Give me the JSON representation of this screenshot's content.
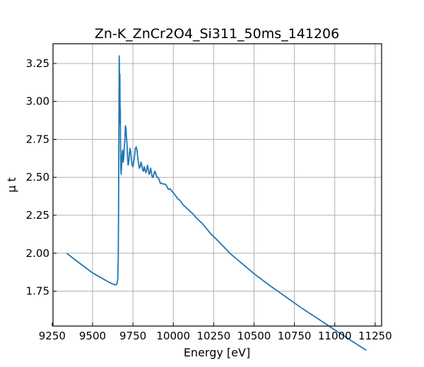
{
  "chart_data": {
    "type": "line",
    "title": "Zn-K_ZnCr2O4_Si311_50ms_141206",
    "xlabel": "Energy [eV]",
    "ylabel": "μ t",
    "xlim": [
      9255,
      11290
    ],
    "ylim": [
      1.52,
      3.38
    ],
    "xticks": [
      9250,
      9500,
      9750,
      10000,
      10250,
      10500,
      10750,
      11000,
      11250
    ],
    "yticks": [
      1.75,
      2.0,
      2.25,
      2.5,
      2.75,
      3.0,
      3.25
    ],
    "xtick_labels": [
      "9250",
      "9500",
      "9750",
      "10000",
      "10250",
      "10500",
      "10750",
      "11000",
      "11250"
    ],
    "ytick_labels": [
      "1.75",
      "2.00",
      "2.25",
      "2.50",
      "2.75",
      "3.00",
      "3.25"
    ],
    "grid": true,
    "color": "#1f77b4",
    "series": [
      {
        "x": [
          9340,
          9400,
          9450,
          9500,
          9550,
          9600,
          9630,
          9645,
          9652,
          9656,
          9659,
          9661,
          9663,
          9664,
          9665,
          9666,
          9667,
          9668,
          9669,
          9670,
          9671,
          9672,
          9673,
          9675,
          9677,
          9680,
          9683,
          9686,
          9690,
          9693,
          9697,
          9700,
          9703,
          9707,
          9710,
          9713,
          9716,
          9720,
          9724,
          9728,
          9732,
          9736,
          9740,
          9745,
          9750,
          9755,
          9760,
          9765,
          9770,
          9775,
          9780,
          9785,
          9790,
          9795,
          9800,
          9805,
          9810,
          9815,
          9820,
          9825,
          9830,
          9835,
          9840,
          9845,
          9850,
          9855,
          9860,
          9865,
          9870,
          9875,
          9880,
          9885,
          9890,
          9895,
          9900,
          9905,
          9910,
          9920,
          9930,
          9940,
          9950,
          9960,
          9970,
          9980,
          9990,
          10000,
          10010,
          10020,
          10030,
          10040,
          10050,
          10060,
          10070,
          10080,
          10090,
          10100,
          10110,
          10120,
          10130,
          10140,
          10150,
          10160,
          10170,
          10180,
          10200,
          10230,
          10260,
          10300,
          10350,
          10400,
          10450,
          10500,
          10600,
          10700,
          10800,
          10900,
          11000,
          11100,
          11195
        ],
        "y": [
          2.0,
          1.95,
          1.91,
          1.87,
          1.84,
          1.81,
          1.795,
          1.79,
          1.8,
          1.83,
          1.95,
          2.3,
          2.75,
          3.1,
          3.3,
          3.25,
          3.05,
          2.9,
          3.18,
          3.05,
          2.85,
          2.95,
          2.75,
          2.55,
          2.52,
          2.58,
          2.65,
          2.68,
          2.6,
          2.63,
          2.7,
          2.75,
          2.84,
          2.82,
          2.76,
          2.72,
          2.65,
          2.58,
          2.6,
          2.66,
          2.69,
          2.67,
          2.62,
          2.58,
          2.57,
          2.6,
          2.64,
          2.69,
          2.7,
          2.68,
          2.63,
          2.59,
          2.56,
          2.57,
          2.6,
          2.58,
          2.55,
          2.54,
          2.57,
          2.55,
          2.53,
          2.55,
          2.58,
          2.55,
          2.52,
          2.53,
          2.56,
          2.53,
          2.5,
          2.5,
          2.52,
          2.54,
          2.53,
          2.51,
          2.5,
          2.5,
          2.49,
          2.46,
          2.46,
          2.455,
          2.455,
          2.44,
          2.42,
          2.425,
          2.41,
          2.4,
          2.385,
          2.37,
          2.355,
          2.35,
          2.335,
          2.32,
          2.31,
          2.3,
          2.29,
          2.28,
          2.27,
          2.26,
          2.25,
          2.235,
          2.225,
          2.215,
          2.205,
          2.195,
          2.17,
          2.13,
          2.1,
          2.055,
          2.0,
          1.955,
          1.91,
          1.865,
          1.785,
          1.71,
          1.635,
          1.565,
          1.495,
          1.425,
          1.36
        ]
      }
    ]
  }
}
